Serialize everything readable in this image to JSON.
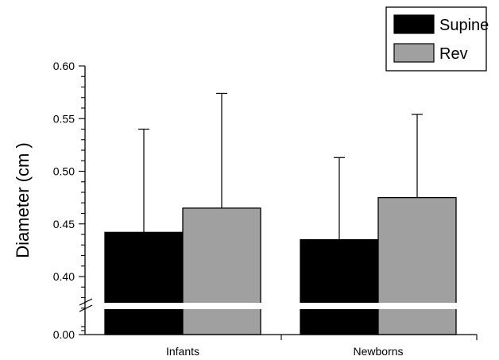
{
  "chart_data": {
    "type": "bar",
    "title": "",
    "xlabel": "",
    "ylabel": "Diameter (cm )",
    "ylim": [
      0.37,
      0.6
    ],
    "broken_axis": {
      "lower_value": 0.0,
      "break": true
    },
    "yticks": [
      0.4,
      0.45,
      0.5,
      0.55,
      0.6
    ],
    "ytick_labels": [
      "0.40",
      "0.45",
      "0.50",
      "0.55",
      "0.60"
    ],
    "lower_tick_label": "0.00",
    "categories": [
      "Infants",
      "Newborns"
    ],
    "series": [
      {
        "name": "Supine",
        "color": "#000000",
        "values": [
          0.442,
          0.435
        ],
        "error": [
          0.098,
          0.078
        ]
      },
      {
        "name": "Rev",
        "color": "#a0a0a0",
        "values": [
          0.465,
          0.475
        ],
        "error": [
          0.109,
          0.079
        ]
      }
    ],
    "legend": {
      "position": "top-right"
    },
    "grid": false
  }
}
